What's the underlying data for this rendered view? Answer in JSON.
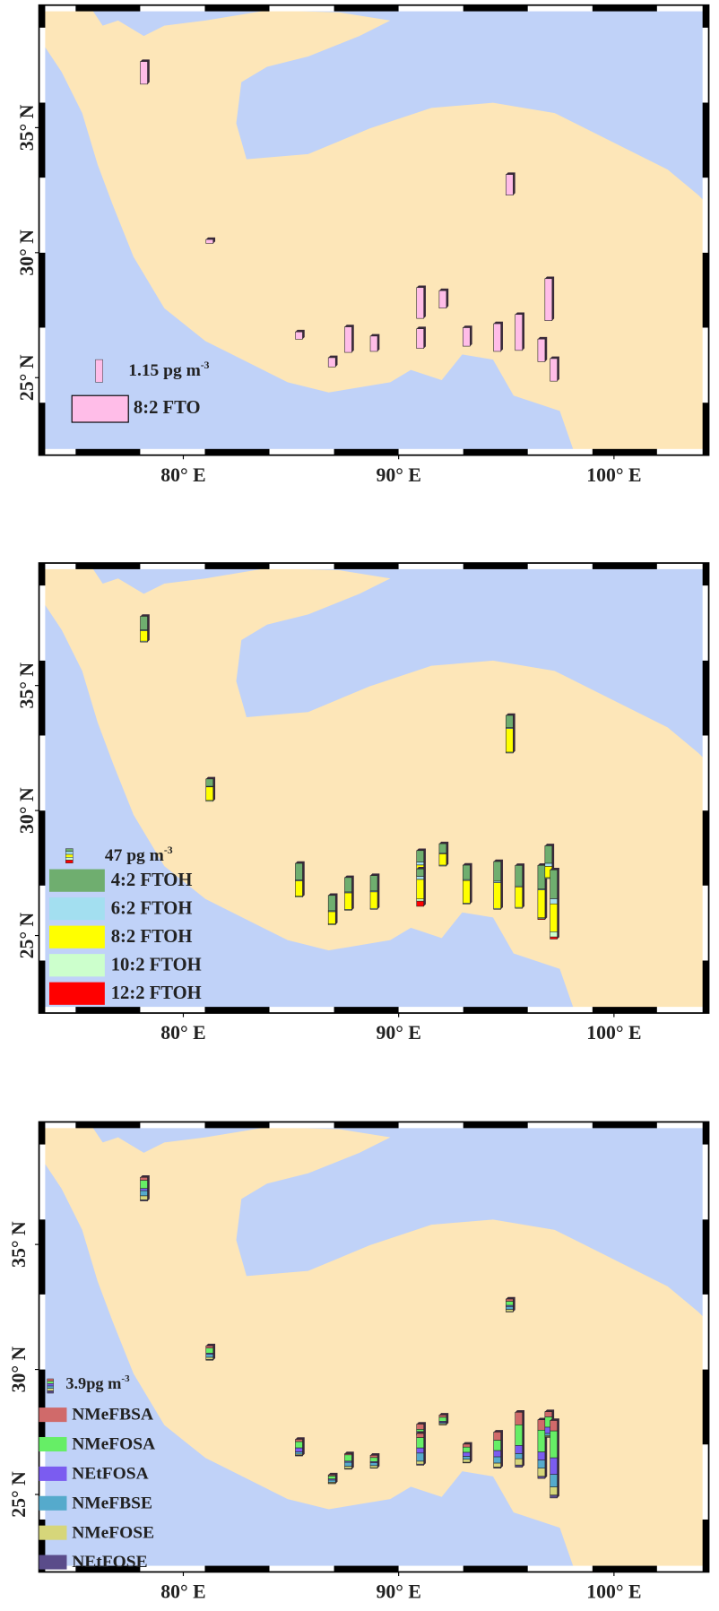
{
  "sites": [
    {
      "lon": 78.17,
      "lat": 36.74
    },
    {
      "lon": 81.22,
      "lat": 30.37
    },
    {
      "lon": 85.37,
      "lat": 26.54
    },
    {
      "lon": 86.9,
      "lat": 25.43
    },
    {
      "lon": 87.66,
      "lat": 26.01
    },
    {
      "lon": 88.85,
      "lat": 26.05
    },
    {
      "lon": 91.0,
      "lat": 27.37
    },
    {
      "lon": 91.0,
      "lat": 26.17
    },
    {
      "lon": 92.05,
      "lat": 27.78
    },
    {
      "lon": 93.15,
      "lat": 26.26
    },
    {
      "lon": 94.58,
      "lat": 26.05
    },
    {
      "lon": 95.15,
      "lat": 32.3
    },
    {
      "lon": 95.58,
      "lat": 26.09
    },
    {
      "lon": 96.63,
      "lat": 25.64
    },
    {
      "lon": 96.96,
      "lat": 27.28
    },
    {
      "lon": 97.2,
      "lat": 24.86
    }
  ],
  "chart_data": [
    {
      "type": "bar-map",
      "xlim": [
        73.3,
        104.4
      ],
      "ylim": [
        21.9,
        39.9
      ],
      "xticks": [
        {
          "value": 80,
          "label": "80°  E"
        },
        {
          "value": 90,
          "label": "90° E"
        },
        {
          "value": 100,
          "label": "100° E"
        }
      ],
      "yticks": [
        {
          "value": 25,
          "label": "25° N"
        },
        {
          "value": 30,
          "label": "30° N"
        },
        {
          "value": 35,
          "label": "35° N"
        }
      ],
      "scale": {
        "value": 1.15,
        "label": "1.15 pg m",
        "sup": "-3"
      },
      "series": [
        {
          "name": "8:2 FTO",
          "color": "#ffbde8",
          "values": [
            1.15,
            0.2,
            0.37,
            0.47,
            1.3,
            0.78,
            1.57,
            1.0,
            0.89,
            0.94,
            1.41,
            1.05,
            1.83,
            1.15,
            2.14,
            1.15
          ]
        }
      ]
    },
    {
      "type": "bar-map",
      "xlim": [
        73.3,
        104.4
      ],
      "ylim": [
        21.9,
        39.9
      ],
      "xticks": [
        {
          "value": 80,
          "label": "80°  E"
        },
        {
          "value": 90,
          "label": "90° E"
        },
        {
          "value": 100,
          "label": "100° E"
        }
      ],
      "yticks": [
        {
          "value": 25,
          "label": "25° N"
        },
        {
          "value": 30,
          "label": "30° N"
        },
        {
          "value": 35,
          "label": "35° N"
        }
      ],
      "scale": {
        "value": 47,
        "label": "47 pg m",
        "sup": "-3"
      },
      "series": [
        {
          "name": "4:2 FTOH",
          "color": "#6fae6f",
          "values": [
            44,
            24,
            54,
            50,
            47,
            50,
            37,
            24,
            30,
            47,
            64,
            40,
            67,
            77,
            57,
            94
          ]
        },
        {
          "name": "6:2 FTOH",
          "color": "#a3dff0",
          "values": [
            3,
            2,
            3,
            3,
            3,
            3,
            10,
            10,
            3,
            3,
            5,
            3,
            3,
            3,
            10,
            17
          ]
        },
        {
          "name": "8:2 FTOH",
          "color": "#ffff00",
          "values": [
            34,
            44,
            50,
            40,
            54,
            54,
            34,
            64,
            37,
            74,
            84,
            77,
            67,
            91,
            37,
            91
          ]
        },
        {
          "name": "10:2 FTOH",
          "color": "#ccffcc",
          "values": [
            3,
            3,
            3,
            3,
            3,
            3,
            3,
            7,
            3,
            3,
            3,
            3,
            3,
            3,
            3,
            17
          ]
        },
        {
          "name": "12:2 FTOH",
          "color": "#ff0000",
          "values": [
            0,
            0,
            0,
            0,
            0,
            0,
            0,
            17,
            0,
            0,
            0,
            0,
            0,
            3,
            0,
            7
          ]
        }
      ]
    },
    {
      "type": "bar-map",
      "xlim": [
        73.3,
        104.4
      ],
      "ylim": [
        21.9,
        39.9
      ],
      "xticks": [
        {
          "value": 80,
          "label": "80°  E"
        },
        {
          "value": 90,
          "label": "90° E"
        },
        {
          "value": 100,
          "label": "100° E"
        }
      ],
      "yticks": [
        {
          "value": 25,
          "label": "25° N"
        },
        {
          "value": 30,
          "label": "30° N"
        },
        {
          "value": 35,
          "label": "35° N"
        }
      ],
      "scale": {
        "value": 3.9,
        "label": "3.9pg m",
        "sup": "-3"
      },
      "series": [
        {
          "name": "NMeFBSA",
          "color": "#d06a6a",
          "values": [
            0.8,
            0.6,
            0.6,
            0.3,
            0.3,
            0.6,
            1.4,
            1.1,
            0.6,
            0.8,
            2.2,
            0.6,
            3.4,
            2.8,
            1.4,
            2.8
          ]
        },
        {
          "name": "NMeFOSA",
          "color": "#66ee66",
          "values": [
            2.2,
            1.4,
            1.7,
            0.8,
            1.7,
            1.1,
            0.6,
            2.8,
            1.1,
            1.4,
            2.8,
            1.1,
            5.6,
            5.9,
            2.8,
            7.3
          ]
        },
        {
          "name": "NEtFOSA",
          "color": "#7b5cf0",
          "values": [
            0.6,
            0.3,
            1.1,
            0.3,
            0.3,
            0.3,
            0.3,
            1.4,
            0.3,
            1.1,
            1.7,
            0.3,
            2.2,
            2.2,
            1.7,
            4.5
          ]
        },
        {
          "name": "NMeFBSE",
          "color": "#55aacc",
          "values": [
            1.4,
            0.8,
            0.6,
            0.6,
            1.1,
            0.8,
            0.3,
            2.2,
            0.3,
            0.8,
            1.7,
            0.8,
            1.4,
            2.2,
            0.6,
            3.4
          ]
        },
        {
          "name": "NMeFOSE",
          "color": "#d6d67a",
          "values": [
            1.1,
            0.6,
            0.3,
            0.3,
            0.6,
            0.6,
            0.3,
            0.8,
            0.3,
            0.8,
            1.1,
            0.6,
            1.7,
            2.2,
            0.3,
            2.2
          ]
        },
        {
          "name": "NEtFOSE",
          "color": "#5a4c8a",
          "values": [
            0.3,
            0.2,
            0.2,
            0.1,
            0.2,
            0.1,
            0.1,
            0.3,
            0.1,
            0.2,
            0.3,
            0.1,
            0.6,
            0.6,
            0.2,
            0.8
          ]
        }
      ]
    }
  ]
}
